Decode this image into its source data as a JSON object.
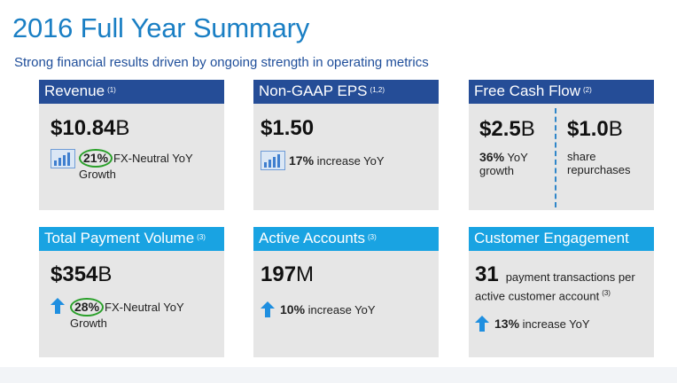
{
  "page": {
    "title": "2016 Full Year Summary",
    "subtitle": "Strong financial results driven by ongoing strength in operating metrics"
  },
  "colors": {
    "title": "#1a7fc4",
    "header_dark": "#254d97",
    "header_light": "#19a3e2",
    "card_bg": "#e6e6e6",
    "highlight_circle": "#2aa02a"
  },
  "cards": {
    "revenue": {
      "label": "Revenue",
      "note": "(1)",
      "value": "$10.84",
      "unit": "B",
      "pct": "21%",
      "desc_line1": "FX-Neutral YoY",
      "desc_line2": "Growth",
      "icon": "bar-chart-icon"
    },
    "eps": {
      "label": "Non-GAAP EPS",
      "note": "(1,2)",
      "value": "$1.50",
      "pct": "17%",
      "desc": "increase YoY",
      "icon": "bar-chart-icon"
    },
    "fcf": {
      "label": "Free Cash Flow",
      "note": "(2)",
      "left_value": "$2.5",
      "left_unit": "B",
      "left_pct": "36%",
      "left_desc_line1": "YoY",
      "left_desc_line2": "growth",
      "right_value": "$1.0",
      "right_unit": "B",
      "right_desc_line1": "share",
      "right_desc_line2": "repurchases"
    },
    "tpv": {
      "label": "Total Payment Volume",
      "note": "(3)",
      "value": "$354",
      "unit": "B",
      "pct": "28%",
      "desc_line1": "FX-Neutral YoY",
      "desc_line2": "Growth",
      "icon": "up-arrow-icon"
    },
    "accounts": {
      "label": "Active Accounts",
      "note": "(3)",
      "value": "197",
      "unit": "M",
      "pct": "10%",
      "desc": "increase YoY",
      "icon": "up-arrow-icon"
    },
    "engagement": {
      "label": "Customer Engagement",
      "value": "31",
      "desc_line1": "payment transactions per",
      "desc_line2": "active customer account",
      "desc_note": "(3)",
      "pct": "13%",
      "desc": "increase YoY",
      "icon": "up-arrow-icon"
    }
  }
}
